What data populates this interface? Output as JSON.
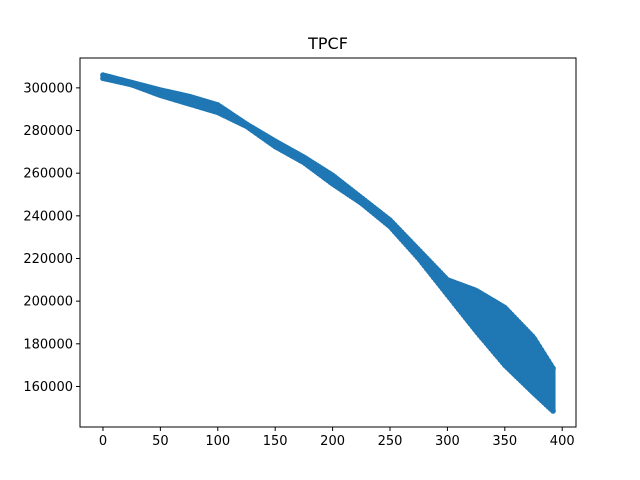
{
  "chart_data": {
    "type": "scatter",
    "title": "TPCF",
    "xlabel": "",
    "ylabel": "",
    "xlim": [
      -20,
      412
    ],
    "ylim": [
      141000,
      314000
    ],
    "x_ticks": [
      0,
      50,
      100,
      150,
      200,
      250,
      300,
      350,
      400
    ],
    "y_ticks": [
      160000,
      180000,
      200000,
      220000,
      240000,
      260000,
      280000,
      300000
    ],
    "x_tick_labels": [
      "0",
      "50",
      "100",
      "150",
      "200",
      "250",
      "300",
      "350",
      "400"
    ],
    "y_tick_labels": [
      "160000",
      "180000",
      "200000",
      "220000",
      "240000",
      "260000",
      "280000",
      "300000"
    ],
    "grid": false,
    "colors": {
      "series": "#1f77b4",
      "axes": "#000000",
      "background": "#ffffff"
    },
    "series": [
      {
        "marker": "circle",
        "x": [
          0,
          25,
          50,
          75,
          100,
          125,
          150,
          175,
          200,
          225,
          250,
          275,
          300,
          325,
          350,
          375,
          392
        ],
        "y_upper": [
          306000,
          302500,
          299000,
          296000,
          292000,
          283000,
          275000,
          267500,
          259000,
          248500,
          238000,
          224000,
          210000,
          205000,
          197000,
          183000,
          168500
        ],
        "y_lower": [
          304500,
          301500,
          296500,
          292500,
          288500,
          282000,
          272500,
          265000,
          255000,
          246000,
          235000,
          220000,
          203000,
          186000,
          170000,
          157000,
          148500
        ]
      }
    ]
  }
}
